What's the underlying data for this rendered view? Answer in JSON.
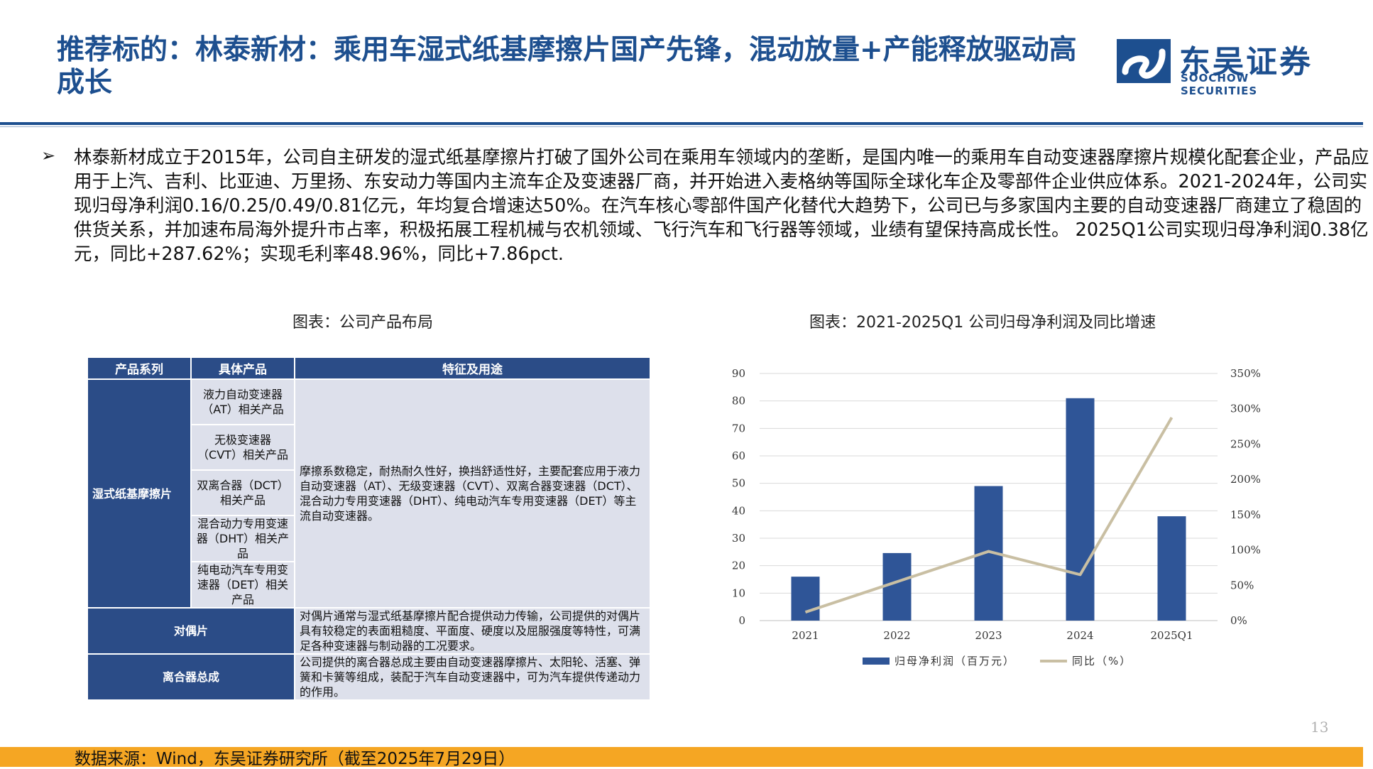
{
  "title": "推荐标的：林泰新材：乘用车湿式纸基摩擦片国产先锋，混动放量+产能释放驱动高成长",
  "logo": {
    "cn": "东吴证券",
    "en": "SOOCHOW SECURITIES",
    "color": "#1d4f8f"
  },
  "bullet_symbol": "➢",
  "paragraph": "林泰新材成立于2015年，公司自主研发的湿式纸基摩擦片打破了国外公司在乘用车领域内的垄断，是国内唯一的乘用车自动变速器摩擦片规模化配套企业，产品应用于上汽、吉利、比亚迪、万里扬、东安动力等国内主流车企及变速器厂商，并开始进入麦格纳等国际全球化车企及零部件企业供应体系。2021-2024年，公司实现归母净利润0.16/0.25/0.49/0.81亿元，年均复合增速达50%。在汽车核心零部件国产化替代大趋势下，公司已与多家国内主要的自动变速器厂商建立了稳固的供货关系，并加速布局海外提升市占率，积极拓展工程机械与农机领域、飞行汽车和飞行器等领域，业绩有望保持高成长性。 2025Q1公司实现归母净利润0.38亿元，同比+287.62%；实现毛利率48.96%，同比+7.86pct.",
  "table_caption": "图表：公司产品布局",
  "chart_caption": "图表：2021-2025Q1 公司归母净利润及同比增速",
  "table": {
    "headers": [
      "产品系列",
      "具体产品",
      "特征及用途"
    ],
    "wet_series": "湿式纸基摩擦片",
    "wet_products": [
      "液力自动变速器（AT）相关产品",
      "无极变速器（CVT）相关产品",
      "双离合器（DCT）相关产品",
      "混合动力专用变速器（DHT）相关产品",
      "纯电动汽车专用变速器（DET）相关产品"
    ],
    "wet_desc": "摩擦系数稳定，耐热耐久性好，换挡舒适性好，主要配套应用于液力自动变速器（AT）、无级变速器（CVT）、双离合器变速器（DCT）、混合动力专用变速器（DHT）、纯电动汽车专用变速器（DET）等主流自动变速器。",
    "dual_series": "对偶片",
    "dual_desc": "对偶片通常与湿式纸基摩擦片配合提供动力传输，公司提供的对偶片具有较稳定的表面粗糙度、平面度、硬度以及屈服强度等特性，可满足各种变速器与制动器的工况要求。",
    "clutch_series": "离合器总成",
    "clutch_desc": "公司提供的离合器总成主要由自动变速器摩擦片、太阳轮、活塞、弹簧和卡簧等组成，装配于汽车自动变速器中，可为汽车提供传递动力的作用。"
  },
  "chart_data": {
    "type": "bar",
    "categories": [
      "2021",
      "2022",
      "2023",
      "2024",
      "2025Q1"
    ],
    "series": [
      {
        "name": "归母净利润（百万元）",
        "type": "bar",
        "axis": "left",
        "color": "#2f5597",
        "values": [
          16,
          24.6,
          49,
          81,
          38
        ]
      },
      {
        "name": "同比（%）",
        "type": "line",
        "axis": "right",
        "color": "#c9bfa3",
        "values": [
          12,
          55,
          98,
          65,
          287.62
        ]
      }
    ],
    "ylim_left": [
      0,
      90
    ],
    "yticks_left": [
      "0",
      "10",
      "20",
      "30",
      "40",
      "50",
      "60",
      "70",
      "80",
      "90"
    ],
    "ylim_right": [
      0,
      350
    ],
    "yticks_right": [
      "0%",
      "50%",
      "100%",
      "150%",
      "200%",
      "250%",
      "300%",
      "350%"
    ],
    "grid": true,
    "legend_position": "bottom"
  },
  "source": "数据来源：Wind，东吴证券研究所（截至2025年7月29日）",
  "page_number": "13"
}
